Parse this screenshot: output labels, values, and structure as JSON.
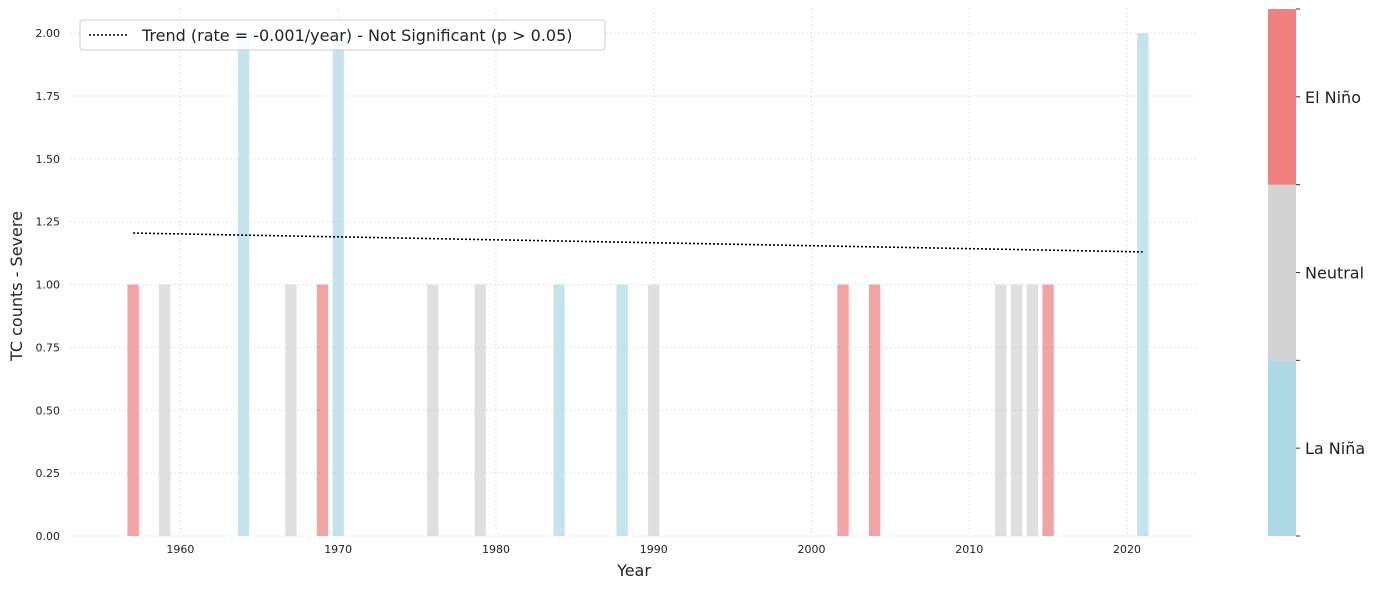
{
  "chart_data": {
    "type": "bar",
    "xlabel": "Year",
    "ylabel": "TC counts - Severe",
    "xlim": [
      1953,
      2024.5
    ],
    "ylim": [
      0,
      2.1
    ],
    "xticks": [
      1960,
      1970,
      1980,
      1990,
      2000,
      2010,
      2020
    ],
    "yticks": [
      0.0,
      0.25,
      0.5,
      0.75,
      1.0,
      1.25,
      1.5,
      1.75,
      2.0
    ],
    "xtick_labels": [
      "1960",
      "1970",
      "1980",
      "1990",
      "2000",
      "2010",
      "2020"
    ],
    "ytick_labels": [
      "0.00",
      "0.25",
      "0.50",
      "0.75",
      "1.00",
      "1.25",
      "1.50",
      "1.75",
      "2.00"
    ],
    "grid": true,
    "bars": [
      {
        "year": 1957,
        "count": 1,
        "phase": "El Niño"
      },
      {
        "year": 1959,
        "count": 1,
        "phase": "Neutral"
      },
      {
        "year": 1964,
        "count": 2,
        "phase": "La Niña"
      },
      {
        "year": 1967,
        "count": 1,
        "phase": "Neutral"
      },
      {
        "year": 1969,
        "count": 1,
        "phase": "El Niño"
      },
      {
        "year": 1970,
        "count": 2,
        "phase": "La Niña"
      },
      {
        "year": 1976,
        "count": 1,
        "phase": "Neutral"
      },
      {
        "year": 1979,
        "count": 1,
        "phase": "Neutral"
      },
      {
        "year": 1984,
        "count": 1,
        "phase": "La Niña"
      },
      {
        "year": 1988,
        "count": 1,
        "phase": "La Niña"
      },
      {
        "year": 1990,
        "count": 1,
        "phase": "Neutral"
      },
      {
        "year": 2002,
        "count": 1,
        "phase": "El Niño"
      },
      {
        "year": 2004,
        "count": 1,
        "phase": "El Niño"
      },
      {
        "year": 2012,
        "count": 1,
        "phase": "Neutral"
      },
      {
        "year": 2013,
        "count": 1,
        "phase": "Neutral"
      },
      {
        "year": 2014,
        "count": 1,
        "phase": "Neutral"
      },
      {
        "year": 2015,
        "count": 1,
        "phase": "El Niño"
      },
      {
        "year": 2021,
        "count": 2,
        "phase": "La Niña"
      }
    ],
    "trend": {
      "label": "Trend (rate = -0.001/year) - Not Significant (p > 0.05)",
      "x": [
        1957,
        2021
      ],
      "y": [
        1.205,
        1.13
      ],
      "style": "dotted",
      "color": "#000000"
    },
    "legend_position": "top-left",
    "colorbar": {
      "categories": [
        "La Niña",
        "Neutral",
        "El Niño"
      ],
      "colors": [
        "#add8e6",
        "#d3d3d3",
        "#f08080"
      ]
    },
    "phase_colors": {
      "El Niño": "#f08080",
      "Neutral": "#d3d3d3",
      "La Niña": "#add8e6"
    }
  }
}
